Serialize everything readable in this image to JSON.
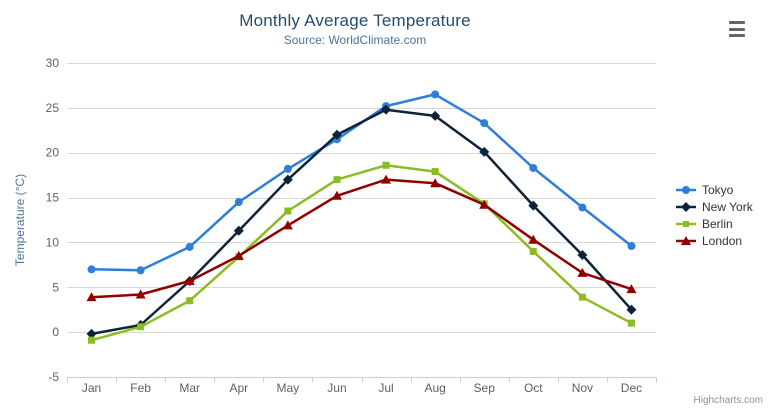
{
  "header": {
    "title": "Monthly Average Temperature",
    "subtitle": "Source: WorldClimate.com"
  },
  "credits_label": "Highcharts.com",
  "icons": {
    "context_menu": "hamburger-menu-icon"
  },
  "colors": {
    "background": "#ffffff",
    "title": "#274b6d",
    "subtitle": "#4d759e",
    "grid_line": "#d8d8d8",
    "axis_line": "#c0d0e0",
    "tick_label": "#606060",
    "axis_title": "#4d759e",
    "legend_text": "#333333",
    "credits": "#909090",
    "menu_icon": "#666666"
  },
  "chart_data": {
    "type": "line",
    "title": "Monthly Average Temperature",
    "subtitle": "Source: WorldClimate.com",
    "categories": [
      "Jan",
      "Feb",
      "Mar",
      "Apr",
      "May",
      "Jun",
      "Jul",
      "Aug",
      "Sep",
      "Oct",
      "Nov",
      "Dec"
    ],
    "xlabel": "",
    "ylabel": "Temperature (°C)",
    "ylim": [
      -5,
      30
    ],
    "ytick_interval": 5,
    "yticks": [
      -5,
      0,
      5,
      10,
      15,
      20,
      25,
      30
    ],
    "grid": true,
    "legend_position": "right",
    "series": [
      {
        "name": "Tokyo",
        "color": "#2f7ed8",
        "marker": "circle",
        "values": [
          7.0,
          6.9,
          9.5,
          14.5,
          18.2,
          21.5,
          25.2,
          26.5,
          23.3,
          18.3,
          13.9,
          9.6
        ]
      },
      {
        "name": "New York",
        "color": "#0d233a",
        "marker": "diamond",
        "values": [
          -0.2,
          0.8,
          5.7,
          11.3,
          17.0,
          22.0,
          24.8,
          24.1,
          20.1,
          14.1,
          8.6,
          2.5
        ]
      },
      {
        "name": "Berlin",
        "color": "#8bbc21",
        "marker": "square",
        "values": [
          -0.9,
          0.6,
          3.5,
          8.4,
          13.5,
          17.0,
          18.6,
          17.9,
          14.3,
          9.0,
          3.9,
          1.0
        ]
      },
      {
        "name": "London",
        "color": "#910000",
        "marker": "triangle",
        "values": [
          3.9,
          4.2,
          5.7,
          8.5,
          11.9,
          15.2,
          17.0,
          16.6,
          14.2,
          10.3,
          6.6,
          4.8
        ]
      }
    ]
  }
}
